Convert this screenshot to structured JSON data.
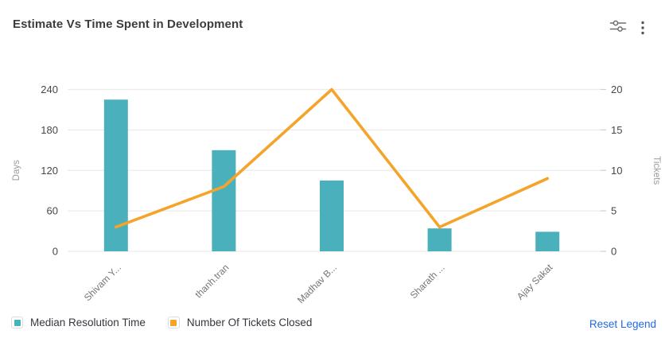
{
  "header": {
    "title": "Estimate Vs Time Spent in Development",
    "icons": [
      {
        "name": "sliders-icon"
      },
      {
        "name": "kebab-menu-icon"
      }
    ]
  },
  "chart_data": {
    "type": "bar+line combo",
    "categories": [
      "Shivam Y...",
      "thanh.tran",
      "Madhav B...",
      "Sharath ...",
      "Ajay Sakat"
    ],
    "series": [
      {
        "name": "Median Resolution Time",
        "type": "bar",
        "axis": "left",
        "color": "#4AB1BC",
        "values": [
          225,
          150,
          105,
          34,
          29
        ]
      },
      {
        "name": "Number Of Tickets Closed",
        "type": "line",
        "axis": "right",
        "color": "#F5A42B",
        "values": [
          3,
          8,
          20,
          3,
          9
        ]
      }
    ],
    "left_axis": {
      "label": "Days",
      "ticks": [
        0,
        60,
        120,
        180,
        240
      ],
      "max": 240
    },
    "right_axis": {
      "label": "Tickets",
      "ticks": [
        0,
        5,
        10,
        15,
        20
      ],
      "max": 20
    },
    "grid": true,
    "x_label_rotation": -45,
    "legend_position": "bottom"
  },
  "legend": {
    "items": [
      {
        "label": "Median Resolution Time",
        "color": "#4AB1BC"
      },
      {
        "label": "Number Of Tickets Closed",
        "color": "#F5A42B"
      }
    ],
    "reset_label": "Reset Legend",
    "reset_color": "#2269E0"
  },
  "colors": {
    "grid": "#ececec",
    "axis_tick_label": "#474747",
    "axis_name": "#9b9b9b",
    "category_label": "#757575",
    "icon": "#6f6f6f"
  }
}
